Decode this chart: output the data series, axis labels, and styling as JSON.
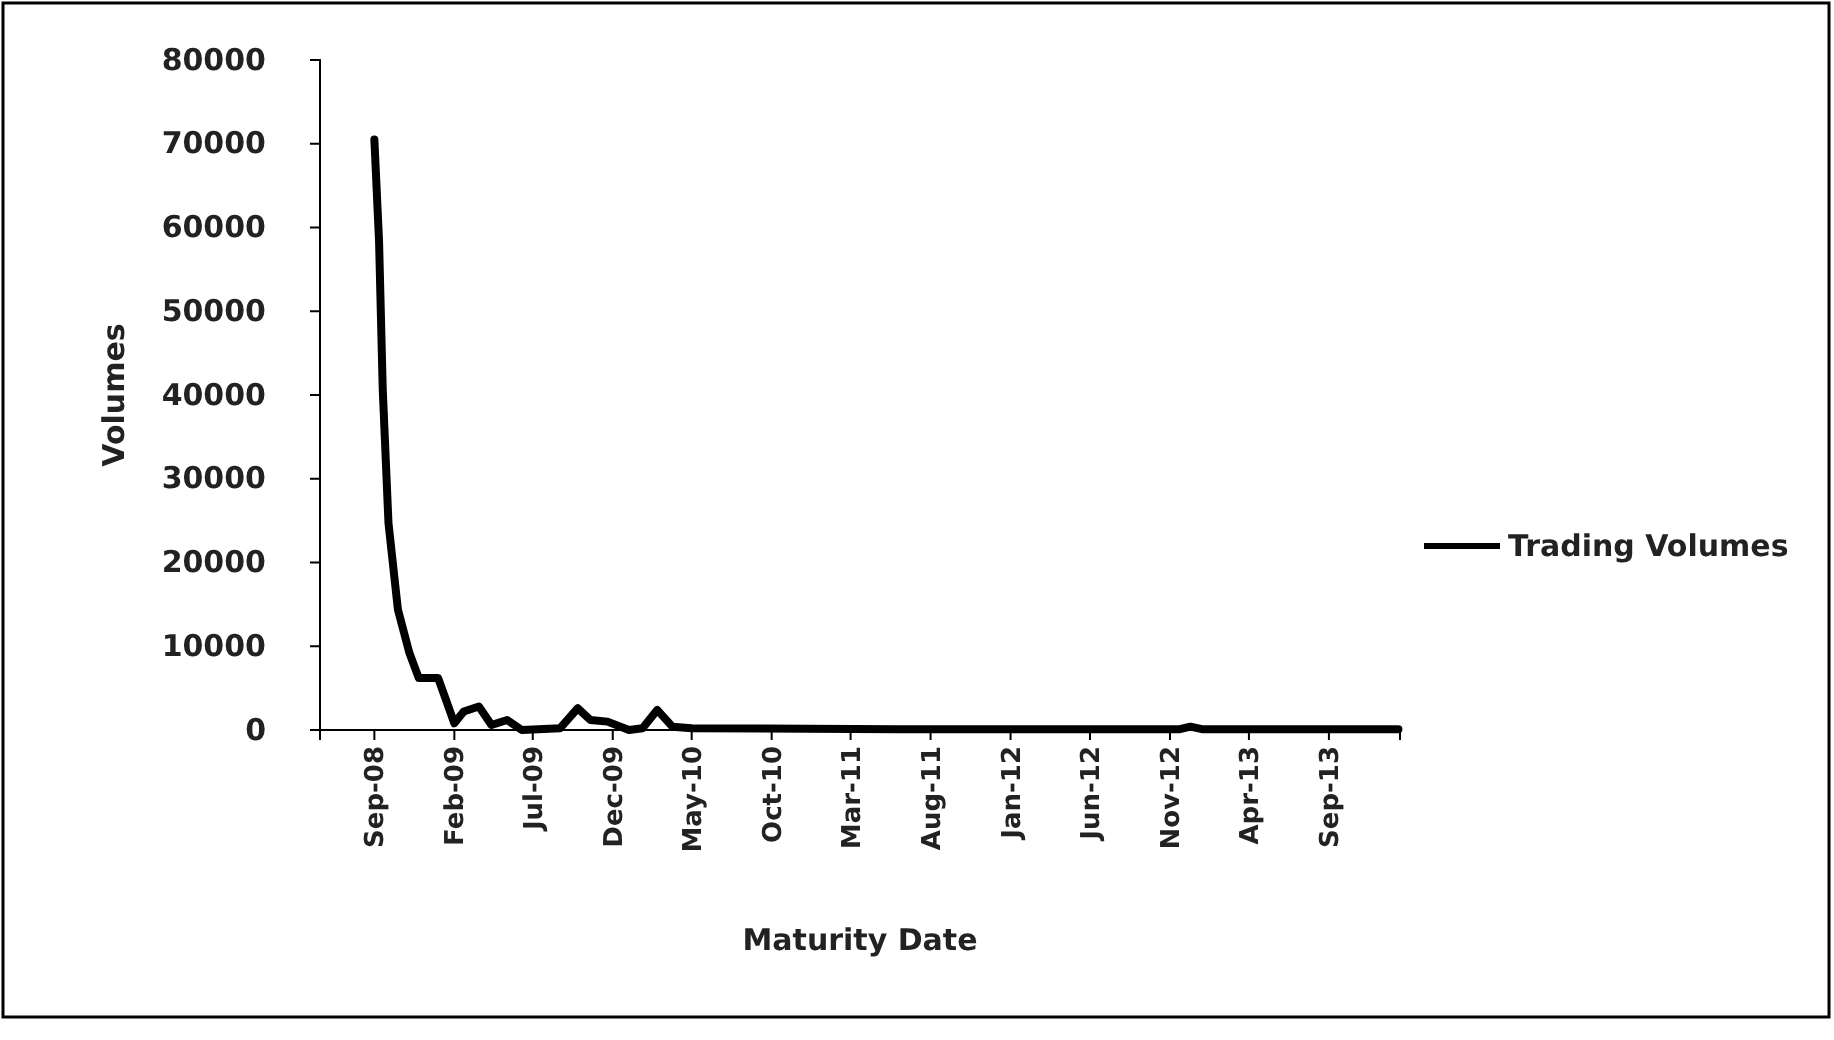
{
  "chart_data": {
    "type": "line",
    "xlabel": "Maturity Date",
    "ylabel": "Volumes",
    "x": [
      "2008-09-01",
      "2008-09-10",
      "2008-09-17",
      "2008-09-28",
      "2008-10-16",
      "2008-11-07",
      "2008-11-25",
      "2009-01-01",
      "2009-01-16",
      "2009-02-01",
      "2009-02-19",
      "2009-03-20",
      "2009-04-13",
      "2009-05-13",
      "2009-06-10",
      "2009-08-22",
      "2009-09-25",
      "2009-10-19",
      "2009-11-21",
      "2010-01-01",
      "2010-01-27",
      "2010-02-24",
      "2010-03-25",
      "2010-05-01",
      "2011-06-01",
      "2012-11-20",
      "2012-12-10",
      "2013-01-01",
      "2014-01-12"
    ],
    "series": [
      {
        "name": "Trading Volumes",
        "color": "#000000",
        "values": [
          70500,
          58300,
          40700,
          24700,
          14400,
          9200,
          6200,
          6200,
          3600,
          800,
          2200,
          2800,
          600,
          1200,
          0,
          200,
          2600,
          1200,
          1000,
          0,
          200,
          2400,
          400,
          200,
          100,
          100,
          400,
          100,
          100
        ]
      }
    ],
    "xlim": [
      "2008-05-20",
      "2014-01-15"
    ],
    "xticks": [
      {
        "value": "2008-09-01",
        "label": "Sep-08"
      },
      {
        "value": "2009-02-01",
        "label": "Feb-09"
      },
      {
        "value": "2009-07-01",
        "label": "Jul-09"
      },
      {
        "value": "2009-12-01",
        "label": "Dec-09"
      },
      {
        "value": "2010-05-01",
        "label": "May-10"
      },
      {
        "value": "2010-10-01",
        "label": "Oct-10"
      },
      {
        "value": "2011-03-01",
        "label": "Mar-11"
      },
      {
        "value": "2011-08-01",
        "label": "Aug-11"
      },
      {
        "value": "2012-01-01",
        "label": "Jan-12"
      },
      {
        "value": "2012-06-01",
        "label": "Jun-12"
      },
      {
        "value": "2012-11-01",
        "label": "Nov-12"
      },
      {
        "value": "2013-04-01",
        "label": "Apr-13"
      },
      {
        "value": "2013-09-01",
        "label": "Sep-13"
      }
    ],
    "ylim": [
      0,
      80000
    ],
    "yticks": [
      0,
      10000,
      20000,
      30000,
      40000,
      50000,
      60000,
      70000,
      80000
    ],
    "legend": "right",
    "marker": "none",
    "line_style": "solid",
    "grid": false
  }
}
